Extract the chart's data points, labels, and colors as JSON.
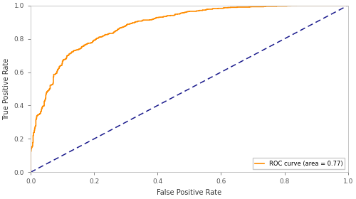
{
  "title": "",
  "xlabel": "False Positive Rate",
  "ylabel": "True Positive Rate",
  "auc": 0.77,
  "legend_label": "ROC curve (area = 0.77)",
  "roc_color": "#FF8C00",
  "diag_color": "#1a1a8c",
  "roc_linewidth": 1.2,
  "diag_linewidth": 1.1,
  "xlim": [
    0.0,
    1.0
  ],
  "ylim": [
    0.0,
    1.0
  ],
  "xticks": [
    0.0,
    0.2,
    0.4,
    0.6,
    0.8,
    1.0
  ],
  "yticks": [
    0.0,
    0.2,
    0.4,
    0.6,
    0.8,
    1.0
  ],
  "figsize": [
    5.0,
    2.8
  ],
  "dpi": 100,
  "seed": 12345
}
